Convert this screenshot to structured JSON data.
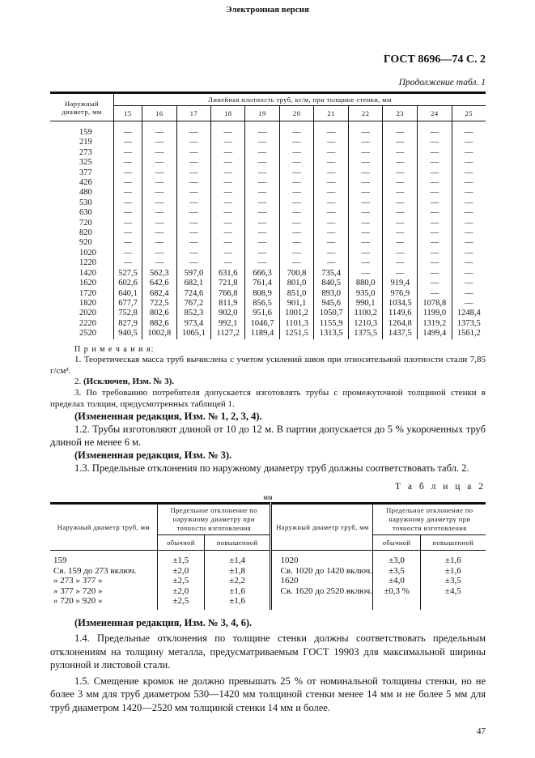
{
  "header": {
    "top_note": "Электронная версия",
    "gost": "ГОСТ 8696—74 С. 2",
    "continuation": "Продолжение табл. 1"
  },
  "table1": {
    "col_header": "Наружный диаметр, мм",
    "group_header": "Линейная плотность труб, кг/м, при толщине стенки, мм",
    "thickness": [
      "15",
      "16",
      "17",
      "18",
      "19",
      "20",
      "21",
      "22",
      "23",
      "24",
      "25"
    ],
    "rows": [
      [
        "159",
        "—",
        "—",
        "—",
        "—",
        "—",
        "—",
        "—",
        "—",
        "—",
        "—",
        "—"
      ],
      [
        "219",
        "—",
        "—",
        "—",
        "—",
        "—",
        "—",
        "—",
        "—",
        "—",
        "—",
        "—"
      ],
      [
        "273",
        "—",
        "—",
        "—",
        "—",
        "—",
        "—",
        "—",
        "—",
        "—",
        "—",
        "—"
      ],
      [
        "325",
        "—",
        "—",
        "—",
        "—",
        "—",
        "—",
        "—",
        "—",
        "—",
        "—",
        "—"
      ],
      [
        "377",
        "—",
        "—",
        "—",
        "—",
        "—",
        "—",
        "—",
        "—",
        "—",
        "—",
        "—"
      ],
      [
        "426",
        "—",
        "—",
        "—",
        "—",
        "—",
        "—",
        "—",
        "—",
        "—",
        "—",
        "—"
      ],
      [
        "480",
        "—",
        "—",
        "—",
        "—",
        "—",
        "—",
        "—",
        "—",
        "—",
        "—",
        "—"
      ],
      [
        "530",
        "—",
        "—",
        "—",
        "—",
        "—",
        "—",
        "—",
        "—",
        "—",
        "—",
        "—"
      ],
      [
        "630",
        "—",
        "—",
        "—",
        "—",
        "—",
        "—",
        "—",
        "—",
        "—",
        "—",
        "—"
      ],
      [
        "720",
        "—",
        "—",
        "—",
        "—",
        "—",
        "—",
        "—",
        "—",
        "—",
        "—",
        "—"
      ],
      [
        "820",
        "—",
        "—",
        "—",
        "—",
        "—",
        "—",
        "—",
        "—",
        "—",
        "—",
        "—"
      ],
      [
        "920",
        "—",
        "—",
        "—",
        "—",
        "—",
        "—",
        "—",
        "—",
        "—",
        "—",
        "—"
      ],
      [
        "1020",
        "—",
        "—",
        "—",
        "—",
        "—",
        "—",
        "—",
        "—",
        "—",
        "—",
        "—"
      ],
      [
        "1220",
        "—",
        "—",
        "—",
        "—",
        "—",
        "—",
        "—",
        "—",
        "—",
        "—",
        "—"
      ],
      [
        "1420",
        "527,5",
        "562,3",
        "597,0",
        "631,6",
        "666,3",
        "700,8",
        "735,4",
        "—",
        "—",
        "—",
        "—"
      ],
      [
        "1620",
        "602,6",
        "642,6",
        "682,1",
        "721,8",
        "761,4",
        "801,0",
        "840,5",
        "880,0",
        "919,4",
        "—",
        "—"
      ],
      [
        "1720",
        "640,1",
        "682,4",
        "724,6",
        "766,8",
        "808,9",
        "851,0",
        "893,0",
        "935,0",
        "976,9",
        "—",
        "—"
      ],
      [
        "1820",
        "677,7",
        "722,5",
        "767,2",
        "811,9",
        "856,5",
        "901,1",
        "945,6",
        "990,1",
        "1034,5",
        "1078,8",
        "—"
      ],
      [
        "2020",
        "752,8",
        "802,6",
        "852,3",
        "902,0",
        "951,6",
        "1001,2",
        "1050,7",
        "1100,2",
        "1149,6",
        "1199,0",
        "1248,4"
      ],
      [
        "2220",
        "827,9",
        "882,6",
        "973,4",
        "992,1",
        "1046,7",
        "1101,3",
        "1155,9",
        "1210,3",
        "1264,8",
        "1319,2",
        "1373,5"
      ],
      [
        "2520",
        "940,5",
        "1002,8",
        "1065,1",
        "1127,2",
        "1189,4",
        "1251,5",
        "1313,5",
        "1375,5",
        "1437,5",
        "1499,4",
        "1561,2"
      ]
    ]
  },
  "notes": {
    "title": "П р и м е ч а н и я:",
    "n1": "1. Теоретическая масса труб вычислена с учетом усилений швов при относительной плотности стали 7,85 г/см³.",
    "n2_num": "2.",
    "n2": "(Исключен, Изм. № 3).",
    "n3": "3. По требованию потребителя допускается изготовлять трубы с промежуточной толщиной стенки в пределах толщин, предусмотренных таблицей 1.",
    "ed1": "(Измененная редакция, Изм. № 1, 2, 3, 4).",
    "p12": "1.2. Трубы изготовляют длиной от 10 до 12 м. В партии допускается до 5 % укороченных труб длиной не менее 6 м.",
    "ed2": "(Измененная редакция, Изм. № 3).",
    "p13": "1.3. Предельные отклонения по наружному диаметру труб должны соответствовать табл. 2."
  },
  "table2": {
    "label": "Т а б л и ц а  2",
    "unit": "мм",
    "col_diam": "Наружный диаметр труб, мм",
    "col_dev": "Предельное отклонение по наружному диаметру при точности изготовления",
    "sub": [
      "обычной",
      "повышенной"
    ],
    "left": [
      [
        "159",
        "±1,5",
        "±1,4"
      ],
      [
        "Св. 159 до 273 включ.",
        "±2,0",
        "±1,8"
      ],
      [
        "» 273 » 377 »",
        "±2,5",
        "±2,2"
      ],
      [
        "» 377 » 720 »",
        "±2,0",
        "±1,6"
      ],
      [
        "» 720 » 920 »",
        "±2,5",
        "±1,6"
      ]
    ],
    "right": [
      [
        "1020",
        "±3,0",
        "±1,6"
      ],
      [
        "Св. 1020 до 1420 включ.",
        "±3,5",
        "±1,6"
      ],
      [
        "1620",
        "±4,0",
        "±3,5"
      ],
      [
        "Св. 1620 до 2520 включ.",
        "±0,3 %",
        "±4,5"
      ],
      [
        "",
        "",
        ""
      ]
    ]
  },
  "after": {
    "ed3": "(Измененная редакция, Изм. № 3, 4, 6).",
    "p14": "1.4. Предельные отклонения по толщине стенки должны соответствовать предельным отклонениям на толщину металла, предусматриваемым ГОСТ 19903 для максимальной ширины рулонной и листовой стали.",
    "p15": "1.5. Смещение кромок не должно превышать 25 % от номинальной толщины стенки, но не более 3 мм для труб диаметром 530—1420 мм толщиной стенки менее 14 мм и не более 5 мм для труб диаметром 1420—2520 мм толщиной стенки 14 мм и более."
  },
  "page_number": "47"
}
